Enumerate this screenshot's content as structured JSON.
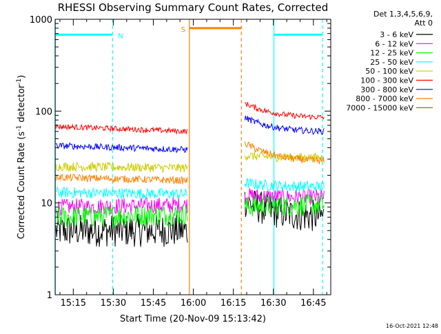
{
  "chart_data": {
    "type": "line",
    "title": "RHESSI Observing Summary Count Rates, Corrected",
    "xlabel": "Start Time (20-Nov-09 15:13:42)",
    "ylabel_main": "Corrected Count Rate (s",
    "ylabel_sup1": "-1",
    "ylabel_mid": " detector",
    "ylabel_sup2": "-1",
    "ylabel_end": ")",
    "y_scale": "log",
    "ylim": [
      1,
      1000
    ],
    "xlim_min": [
      908.2,
      1011.5
    ],
    "x_ticks": [
      {
        "v": 915,
        "label": "15:15"
      },
      {
        "v": 930,
        "label": "15:30"
      },
      {
        "v": 945,
        "label": "15:45"
      },
      {
        "v": 960,
        "label": "16:00"
      },
      {
        "v": 975,
        "label": "16:15"
      },
      {
        "v": 990,
        "label": "16:30"
      },
      {
        "v": 1005,
        "label": "16:45"
      }
    ],
    "y_ticks": [
      {
        "v": 1,
        "label": "1"
      },
      {
        "v": 10,
        "label": "10"
      },
      {
        "v": 100,
        "label": "100"
      },
      {
        "v": 1000,
        "label": "1000"
      }
    ],
    "legend_header": [
      "Det 1,3,4,5,6,9,",
      "Att 0"
    ],
    "legend_position": "right",
    "timestamp": "16-Oct-2021 12:48",
    "series": [
      {
        "name": "3 - 6 keV",
        "color": "#000000",
        "pre": [
          5.0,
          5.0
        ],
        "post": [
          10.5,
          7.0
        ],
        "noise": 0.18
      },
      {
        "name": "6 - 12 keV",
        "color": "#ff00ff",
        "pre": [
          9.0,
          9.5
        ],
        "post": [
          12.0,
          11.5
        ],
        "noise": 0.09
      },
      {
        "name": "12 - 25 keV",
        "color": "#00ff00",
        "pre": [
          7.0,
          7.5
        ],
        "post": [
          9.0,
          9.5
        ],
        "noise": 0.12
      },
      {
        "name": "25 - 50 keV",
        "color": "#00ffff",
        "pre": [
          13.0,
          12.5
        ],
        "post": [
          16.5,
          15.0
        ],
        "noise": 0.06
      },
      {
        "name": "50 - 100 keV",
        "color": "#cccc00",
        "pre": [
          25.0,
          24.0
        ],
        "post": [
          33.0,
          31.0
        ],
        "noise": 0.05
      },
      {
        "name": "100 - 300 keV",
        "color": "#ff0000",
        "pre": [
          68.0,
          60.0
        ],
        "post": [
          122.0,
          84.0
        ],
        "noise": 0.03
      },
      {
        "name": "300 - 800 keV",
        "color": "#0000ff",
        "pre": [
          42.0,
          38.0
        ],
        "post": [
          85.0,
          59.0
        ],
        "noise": 0.035
      },
      {
        "name": "800 - 7000 keV",
        "color": "#ff8000",
        "pre": [
          19.0,
          17.5
        ],
        "post": [
          45.0,
          28.0
        ],
        "noise": 0.04
      },
      {
        "name": "7000 - 15000 keV",
        "color": "#808000",
        "pre": null,
        "post": null,
        "noise": 0
      }
    ],
    "data_window_min": {
      "pre": [
        908.5,
        957.8
      ],
      "post": [
        979.3,
        1009.0
      ]
    },
    "intervals": [
      {
        "label": "N",
        "color": "#00ffff",
        "start": 908.3,
        "end": 929.7,
        "level": 680
      },
      {
        "label": "S",
        "color": "#ff8000",
        "start": 958.5,
        "end": 978.0,
        "level": 800
      },
      {
        "label": "",
        "color": "#00ffff",
        "start": 990.2,
        "end": 1008.4,
        "level": 680
      }
    ]
  }
}
